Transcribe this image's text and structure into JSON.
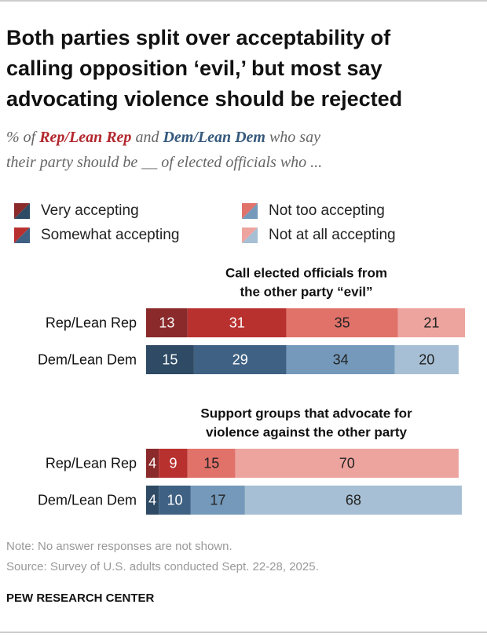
{
  "chart_data": {
    "type": "bar",
    "orientation": "horizontal",
    "stacked": true,
    "title": [
      "Both parties split over acceptability of",
      "calling opposition ‘evil,’ but most say",
      "advocating violence should be rejected"
    ],
    "subtitle": [
      [
        {
          "text": "% of "
        },
        {
          "text": "Rep/Lean Rep",
          "color": "#b2282e"
        },
        {
          "text": " and "
        },
        {
          "text": "Dem/Lean Dem",
          "color": "#35597c"
        },
        {
          "text": " who say"
        }
      ],
      [
        {
          "text": "their party should be __ of elected officials who ..."
        }
      ]
    ],
    "xlim": [
      0,
      100
    ],
    "series": [
      {
        "name": "Very accepting",
        "colors": [
          "#8a2a2a",
          "#2e4a64"
        ]
      },
      {
        "name": "Somewhat accepting",
        "colors": [
          "#b8312f",
          "#3f6183"
        ]
      },
      {
        "name": "Not too accepting",
        "colors": [
          "#e0726a",
          "#7499ba"
        ]
      },
      {
        "name": "Not at all accepting",
        "colors": [
          "#eda49e",
          "#a7bfd4"
        ]
      }
    ],
    "panels": [
      {
        "title": [
          "Call elected officials from",
          "the other party “evil”"
        ],
        "categories": [
          "Rep/Lean Rep",
          "Dem/Lean Dem"
        ],
        "values": [
          [
            13,
            31,
            35,
            21
          ],
          [
            15,
            29,
            34,
            20
          ]
        ]
      },
      {
        "title": [
          "Support groups that advocate for",
          "violence against the other party"
        ],
        "categories": [
          "Rep/Lean Rep",
          "Dem/Lean Dem"
        ],
        "values": [
          [
            4,
            9,
            15,
            70
          ],
          [
            4,
            10,
            17,
            68
          ]
        ]
      }
    ],
    "note": "Note: No answer responses are not shown.",
    "source": "Source: Survey of U.S. adults conducted Sept. 22-28, 2025.",
    "footer": "PEW RESEARCH CENTER"
  }
}
